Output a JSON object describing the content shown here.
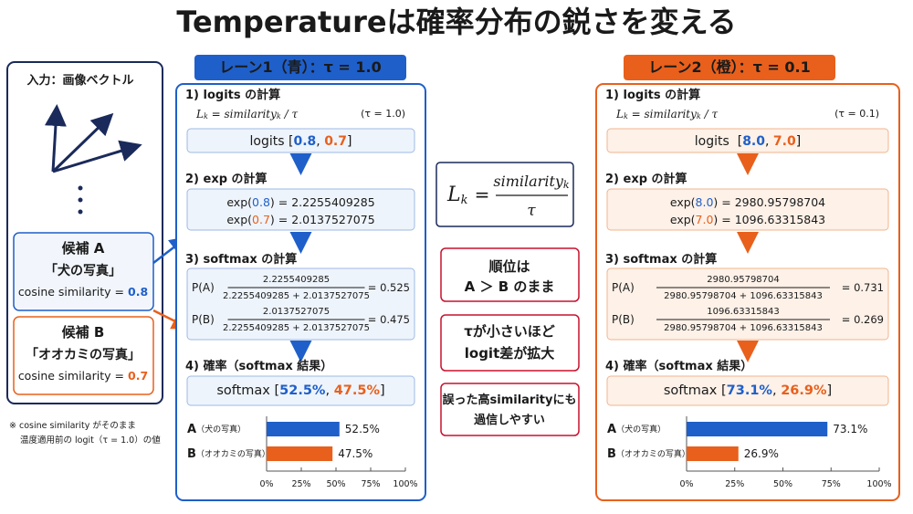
{
  "title": "Temperatureは確率分布の鋭さを変える",
  "input": {
    "title": "入力：画像ベクトル",
    "candidates": [
      {
        "name": "候補 A",
        "caption": "「犬の写真」",
        "metric": "cosine similarity = ",
        "value": "0.8"
      },
      {
        "name": "候補 B",
        "caption": "「オオカミの写真」",
        "metric": "cosine similarity = ",
        "value": "0.7"
      }
    ],
    "note": [
      "※ cosine similarity がそのまま",
      "温度適用前の logit（τ = 1.0）の値"
    ]
  },
  "center": {
    "formula": {
      "lhs": "L",
      "lhs_sub": "k",
      "eq": "=",
      "num": "similarity",
      "num_sub": "k",
      "den": "τ"
    },
    "messages": [
      [
        "順位は",
        "A ＞ B のまま"
      ],
      [
        "τが小さいほど",
        "logit差が拡大"
      ],
      [
        "誤った高similarityにも",
        "過信しやすい"
      ]
    ]
  },
  "lanes": [
    {
      "header": "レーン1（青）：τ = 1.0",
      "step1": {
        "heading": "1) logits の計算",
        "formula": [
          "L",
          "k",
          " = similarity",
          "k",
          " / τ"
        ],
        "tau_note": "(τ = 1.0)",
        "logits": [
          "logits [",
          "0.8",
          ", ",
          "0.7",
          "]"
        ]
      },
      "step2": {
        "heading": "2) exp の計算",
        "rows": [
          [
            "exp(",
            "0.8",
            ") = 2.2255409285"
          ],
          [
            "exp(",
            "0.7",
            ") = 2.0137527075"
          ]
        ]
      },
      "step3": {
        "heading": "3) softmax の計算",
        "rows": [
          {
            "label": "P(A)",
            "numerator": "2.2255409285",
            "denominator": "2.2255409285 + 2.0137527075",
            "result": "= 0.525"
          },
          {
            "label": "P(B)",
            "numerator": "2.0137527075",
            "denominator": "2.2255409285 + 2.0137527075",
            "result": "= 0.475"
          }
        ]
      },
      "step4": {
        "heading": "4) 確率（softmax 結果）",
        "result": [
          "softmax [",
          "52.5%",
          ", ",
          "47.5%",
          "]"
        ]
      },
      "chart": {
        "type": "bar",
        "categories": [
          "A",
          "B"
        ],
        "category_notes": [
          "（犬の写真）",
          "（オオカミの写真）"
        ],
        "values": [
          52.5,
          47.5
        ],
        "value_labels": [
          "52.5%",
          "47.5%"
        ],
        "colors": [
          "#1f5fc9",
          "#e8601c"
        ],
        "xlim": [
          0,
          100
        ],
        "xticks": [
          {
            "value": 0,
            "label": "0%"
          },
          {
            "value": 25,
            "label": "25%"
          },
          {
            "value": 50,
            "label": "50%"
          },
          {
            "value": 75,
            "label": "75%"
          },
          {
            "value": 100,
            "label": "100%"
          }
        ]
      }
    },
    {
      "header": "レーン2（橙）：τ = 0.1",
      "step1": {
        "heading": "1) logits の計算",
        "formula": [
          "L",
          "k",
          " = similarity",
          "k",
          " / τ"
        ],
        "tau_note": "(τ = 0.1)",
        "logits": [
          "logits  [",
          "8.0",
          ", ",
          "7.0",
          "]"
        ]
      },
      "step2": {
        "heading": "2) exp の計算",
        "rows": [
          [
            "exp(",
            "8.0",
            ") = 2980.95798704"
          ],
          [
            "exp(",
            "7.0",
            ") = 1096.63315843"
          ]
        ]
      },
      "step3": {
        "heading": "3) softmax の計算",
        "rows": [
          {
            "label": "P(A)",
            "numerator": "2980.95798704",
            "denominator": "2980.95798704 + 1096.63315843",
            "result": "= 0.731"
          },
          {
            "label": "P(B)",
            "numerator": "1096.63315843",
            "denominator": "2980.95798704 + 1096.63315843",
            "result": "= 0.269"
          }
        ]
      },
      "step4": {
        "heading": "4) 確率（softmax 結果）",
        "result": [
          "softmax [",
          "73.1%",
          ", ",
          "26.9%",
          "]"
        ]
      },
      "chart": {
        "type": "bar",
        "categories": [
          "A",
          "B"
        ],
        "category_notes": [
          "（犬の写真）",
          "（オオカミの写真）"
        ],
        "values": [
          73.1,
          26.9
        ],
        "value_labels": [
          "73.1%",
          "26.9%"
        ],
        "colors": [
          "#1f5fc9",
          "#e8601c"
        ],
        "xlim": [
          0,
          100
        ],
        "xticks": [
          {
            "value": 0,
            "label": "0%"
          },
          {
            "value": 25,
            "label": "25%"
          },
          {
            "value": 50,
            "label": "50%"
          },
          {
            "value": 75,
            "label": "75%"
          },
          {
            "value": 100,
            "label": "100%"
          }
        ]
      }
    }
  ]
}
